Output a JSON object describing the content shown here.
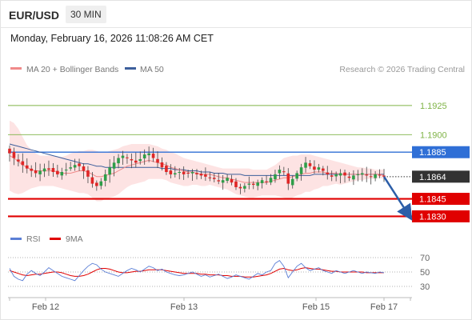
{
  "header": {
    "symbol": "EUR/USD",
    "timeframe": "30 MIN",
    "datetime": "Monday, February 16, 2026 11:08:26 AM CET"
  },
  "legend": {
    "items": [
      {
        "label": "MA 20 + Bollinger Bands",
        "color": "#f08a8a"
      },
      {
        "label": "MA 50",
        "color": "#3d5f9c"
      }
    ],
    "credit": "Research © 2026 Trading Central"
  },
  "chart_data": [
    {
      "type": "candlestick",
      "ylim": [
        1.182,
        1.194
      ],
      "grid": false,
      "current_price": {
        "value": 1.1864,
        "label": "1.1864",
        "color": "#333333"
      },
      "levels": [
        {
          "value": 1.1925,
          "label": "1.1925",
          "color": "#7fb346",
          "kind": "target"
        },
        {
          "value": 1.19,
          "label": "1.1900",
          "color": "#7fb346",
          "kind": "target"
        },
        {
          "value": 1.1885,
          "label": "1.1885",
          "color": "#2f6fd6",
          "kind": "pivot"
        },
        {
          "value": 1.1845,
          "label": "1.1845",
          "color": "#e00000",
          "kind": "support"
        },
        {
          "value": 1.183,
          "label": "1.1830",
          "color": "#e00000",
          "kind": "support"
        }
      ],
      "projection": {
        "from": 1.1864,
        "to": 1.183,
        "color": "#2c5ea8"
      },
      "x_ticks": [
        "Feb 12",
        "Feb 13",
        "Feb 15",
        "Feb 17"
      ],
      "price_series": [
        1.1884,
        1.188,
        1.1877,
        1.1874,
        1.1871,
        1.1869,
        1.1867,
        1.1869,
        1.1871,
        1.187,
        1.1868,
        1.1866,
        1.1868,
        1.187,
        1.1872,
        1.1874,
        1.1873,
        1.1869,
        1.1864,
        1.1858,
        1.1856,
        1.186,
        1.1866,
        1.1872,
        1.1876,
        1.188,
        1.1882,
        1.188,
        1.1878,
        1.1876,
        1.1879,
        1.1883,
        1.1884,
        1.188,
        1.1876,
        1.1872,
        1.1868,
        1.1866,
        1.1867,
        1.1868,
        1.1866,
        1.1867,
        1.1868,
        1.1866,
        1.1865,
        1.1864,
        1.1863,
        1.1862,
        1.186,
        1.1861,
        1.1863,
        1.1859,
        1.1855,
        1.1854,
        1.1856,
        1.1858,
        1.1857,
        1.1859,
        1.1861,
        1.186,
        1.1863,
        1.1866,
        1.187,
        1.1868,
        1.1858,
        1.1862,
        1.1867,
        1.1872,
        1.1876,
        1.1873,
        1.187,
        1.1872,
        1.1869,
        1.1866,
        1.1864,
        1.1866,
        1.1867,
        1.1865,
        1.1863,
        1.1865,
        1.1866,
        1.1867,
        1.1865,
        1.1864,
        1.1866,
        1.1865,
        1.1864
      ],
      "ma20": [
        1.1882,
        1.188,
        1.1877,
        1.1874,
        1.1872,
        1.187,
        1.1869,
        1.1869,
        1.1869,
        1.1869,
        1.1869,
        1.1868,
        1.1867,
        1.1867,
        1.1867,
        1.1868,
        1.1869,
        1.1869,
        1.1868,
        1.1866,
        1.1864,
        1.1864,
        1.1865,
        1.1866,
        1.1867,
        1.1869,
        1.1871,
        1.1873,
        1.1874,
        1.1875,
        1.1876,
        1.1877,
        1.1878,
        1.1877,
        1.1876,
        1.1875,
        1.1874,
        1.1872,
        1.1871,
        1.187,
        1.1869,
        1.1868,
        1.1868,
        1.1867,
        1.1866,
        1.1866,
        1.1866,
        1.1865,
        1.1864,
        1.1863,
        1.1863,
        1.1862,
        1.1861,
        1.186,
        1.1859,
        1.1859,
        1.1859,
        1.1859,
        1.1859,
        1.1859,
        1.186,
        1.1861,
        1.1862,
        1.1863,
        1.1863,
        1.1864,
        1.1865,
        1.1866,
        1.1867,
        1.1867,
        1.1868,
        1.1868,
        1.1868,
        1.1867,
        1.1867,
        1.1867,
        1.1866,
        1.1866,
        1.1866,
        1.1866,
        1.1866,
        1.1866,
        1.1866,
        1.1866,
        1.1866,
        1.1866,
        1.1865
      ],
      "ma50": [
        1.1892,
        1.1891,
        1.189,
        1.1889,
        1.1888,
        1.1887,
        1.1886,
        1.1885,
        1.1884,
        1.1883,
        1.1882,
        1.1881,
        1.188,
        1.1879,
        1.1878,
        1.1877,
        1.1876,
        1.1875,
        1.1875,
        1.1874,
        1.1873,
        1.1873,
        1.1872,
        1.1872,
        1.1872,
        1.1872,
        1.1872,
        1.1872,
        1.1872,
        1.1872,
        1.1872,
        1.1872,
        1.1872,
        1.1872,
        1.1872,
        1.1871,
        1.1871,
        1.1871,
        1.187,
        1.187,
        1.187,
        1.1869,
        1.1869,
        1.1869,
        1.1868,
        1.1868,
        1.1868,
        1.1867,
        1.1867,
        1.1867,
        1.1866,
        1.1866,
        1.1866,
        1.1866,
        1.1865,
        1.1865,
        1.1865,
        1.1865,
        1.1865,
        1.1865,
        1.1865,
        1.1865,
        1.1865,
        1.1865,
        1.1865,
        1.1865,
        1.1865,
        1.1865,
        1.1865,
        1.1865,
        1.1866,
        1.1866,
        1.1866,
        1.1866,
        1.1866,
        1.1866,
        1.1866,
        1.1866,
        1.1866,
        1.1866,
        1.1866,
        1.1866,
        1.1866,
        1.1866,
        1.1866,
        1.1866,
        1.1866
      ],
      "bb_upper": [
        1.1912,
        1.191,
        1.1905,
        1.1898,
        1.1891,
        1.1887,
        1.1884,
        1.1882,
        1.1882,
        1.1882,
        1.1882,
        1.1881,
        1.1881,
        1.1882,
        1.1884,
        1.1885,
        1.1886,
        1.1886,
        1.1887,
        1.1887,
        1.1886,
        1.1885,
        1.1885,
        1.1886,
        1.1887,
        1.1888,
        1.189,
        1.1891,
        1.1892,
        1.1892,
        1.1892,
        1.1892,
        1.1892,
        1.1891,
        1.189,
        1.1888,
        1.1887,
        1.1885,
        1.1884,
        1.1882,
        1.188,
        1.1879,
        1.1878,
        1.1877,
        1.1876,
        1.1875,
        1.1874,
        1.1873,
        1.1872,
        1.1871,
        1.1871,
        1.1871,
        1.1871,
        1.1871,
        1.1871,
        1.1871,
        1.187,
        1.187,
        1.187,
        1.187,
        1.1872,
        1.1874,
        1.1877,
        1.188,
        1.1881,
        1.1882,
        1.1882,
        1.1883,
        1.1883,
        1.1883,
        1.1882,
        1.1881,
        1.188,
        1.1879,
        1.1878,
        1.1877,
        1.1876,
        1.1875,
        1.1874,
        1.1873,
        1.1872,
        1.1872,
        1.1871,
        1.1871,
        1.187,
        1.187,
        1.187
      ],
      "bb_lower": [
        1.1852,
        1.185,
        1.1849,
        1.185,
        1.1852,
        1.1854,
        1.1855,
        1.1856,
        1.1856,
        1.1856,
        1.1856,
        1.1855,
        1.1854,
        1.1853,
        1.1852,
        1.1851,
        1.185,
        1.185,
        1.1849,
        1.1846,
        1.1843,
        1.1843,
        1.1845,
        1.1846,
        1.1847,
        1.1849,
        1.1852,
        1.1855,
        1.1857,
        1.1858,
        1.1859,
        1.186,
        1.1862,
        1.1862,
        1.1862,
        1.1862,
        1.1861,
        1.1859,
        1.1858,
        1.1857,
        1.1856,
        1.1856,
        1.1857,
        1.1857,
        1.1856,
        1.1856,
        1.1857,
        1.1856,
        1.1855,
        1.1854,
        1.1853,
        1.1851,
        1.1849,
        1.1848,
        1.1847,
        1.1846,
        1.1846,
        1.1847,
        1.1848,
        1.1848,
        1.1848,
        1.1848,
        1.1847,
        1.1846,
        1.1845,
        1.1846,
        1.1848,
        1.1849,
        1.1851,
        1.1851,
        1.1853,
        1.1854,
        1.1856,
        1.1856,
        1.1857,
        1.1858,
        1.1857,
        1.1858,
        1.1859,
        1.186,
        1.1861,
        1.1861,
        1.1862,
        1.1862,
        1.1862,
        1.1863,
        1.1862
      ]
    },
    {
      "type": "line",
      "legend": [
        {
          "label": "RSI",
          "color": "#5b7fd6"
        },
        {
          "label": "9MA",
          "color": "#e00000"
        }
      ],
      "ylim": [
        20,
        80
      ],
      "y_ticks": [
        70,
        50,
        30
      ],
      "rsi": [
        55,
        44,
        40,
        38,
        47,
        52,
        48,
        45,
        50,
        56,
        52,
        48,
        44,
        42,
        40,
        38,
        45,
        52,
        58,
        62,
        60,
        54,
        50,
        48,
        46,
        44,
        48,
        52,
        55,
        53,
        50,
        54,
        58,
        56,
        52,
        54,
        50,
        48,
        46,
        45,
        46,
        48,
        50,
        47,
        44,
        46,
        43,
        45,
        47,
        44,
        41,
        43,
        46,
        44,
        42,
        40,
        44,
        48,
        46,
        50,
        52,
        62,
        66,
        58,
        42,
        50,
        58,
        62,
        56,
        52,
        54,
        56,
        52,
        50,
        48,
        52,
        50,
        48,
        50,
        52,
        50,
        48,
        50,
        49,
        48,
        50,
        49
      ],
      "ma9": [
        52,
        50,
        48,
        46,
        45,
        46,
        47,
        47,
        48,
        49,
        50,
        50,
        49,
        47,
        45,
        44,
        44,
        45,
        47,
        50,
        53,
        55,
        55,
        54,
        52,
        50,
        49,
        49,
        50,
        51,
        51,
        52,
        53,
        53,
        53,
        53,
        52,
        51,
        50,
        49,
        48,
        48,
        48,
        48,
        47,
        47,
        46,
        46,
        46,
        45,
        45,
        44,
        44,
        44,
        43,
        43,
        43,
        44,
        45,
        46,
        48,
        51,
        54,
        55,
        53,
        52,
        53,
        55,
        56,
        55,
        54,
        54,
        53,
        52,
        51,
        51,
        50,
        50,
        50,
        50,
        50,
        50,
        49,
        49,
        49,
        49,
        49
      ]
    }
  ]
}
